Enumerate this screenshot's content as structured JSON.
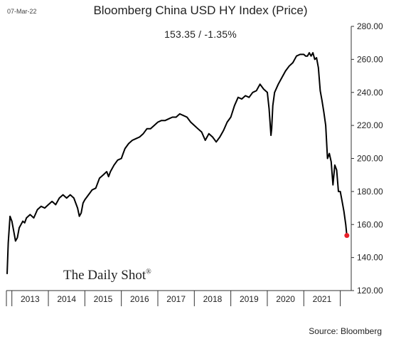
{
  "header": {
    "date": "07-Mar-22",
    "source": "Source: Bloomberg",
    "brand": "The Daily Shot",
    "brand_mark": "®"
  },
  "chart_data": {
    "type": "line",
    "title": "Bloomberg China USD HY Index (Price)",
    "subtitle": "153.35  /  -1.35%",
    "xlabel": "",
    "ylabel": "",
    "ylim": [
      120,
      280
    ],
    "yticks": [
      120,
      140,
      160,
      180,
      200,
      220,
      240,
      260,
      280
    ],
    "ytick_labels": [
      "120.00",
      "140.00",
      "160.00",
      "180.00",
      "200.00",
      "220.00",
      "240.00",
      "260.00",
      "280.00"
    ],
    "xlim": [
      2012.85,
      2022.3
    ],
    "x_period_labels": [
      "2013",
      "2014",
      "2015",
      "2016",
      "2017",
      "2018",
      "2019",
      "2020",
      "2021"
    ],
    "x_period_starts": [
      2013,
      2014,
      2015,
      2016,
      2017,
      2018,
      2019,
      2020,
      2021
    ],
    "grid": false,
    "line_color": "#000000",
    "last_point": {
      "x": 2022.18,
      "y": 153.35,
      "color": "#e8202a"
    },
    "series": [
      {
        "x": [
          2012.87,
          2012.9,
          2012.95,
          2013.0,
          2013.05,
          2013.1,
          2013.15,
          2013.2,
          2013.25,
          2013.3,
          2013.35,
          2013.4,
          2013.5,
          2013.6,
          2013.7,
          2013.8,
          2013.9,
          2014.0,
          2014.1,
          2014.2,
          2014.3,
          2014.4,
          2014.5,
          2014.6,
          2014.7,
          2014.8,
          2014.85,
          2014.9,
          2014.95,
          2015.0,
          2015.1,
          2015.2,
          2015.3,
          2015.4,
          2015.5,
          2015.6,
          2015.65,
          2015.7,
          2015.8,
          2015.9,
          2016.0,
          2016.05,
          2016.1,
          2016.2,
          2016.3,
          2016.4,
          2016.5,
          2016.6,
          2016.7,
          2016.8,
          2016.9,
          2017.0,
          2017.1,
          2017.2,
          2017.3,
          2017.4,
          2017.5,
          2017.6,
          2017.7,
          2017.8,
          2017.9,
          2018.0,
          2018.1,
          2018.2,
          2018.3,
          2018.4,
          2018.5,
          2018.6,
          2018.7,
          2018.8,
          2018.9,
          2019.0,
          2019.1,
          2019.2,
          2019.3,
          2019.4,
          2019.5,
          2019.6,
          2019.7,
          2019.8,
          2019.9,
          2020.0,
          2020.05,
          2020.1,
          2020.12,
          2020.15,
          2020.2,
          2020.3,
          2020.4,
          2020.5,
          2020.6,
          2020.7,
          2020.8,
          2020.9,
          2021.0,
          2021.05,
          2021.1,
          2021.15,
          2021.2,
          2021.25,
          2021.3,
          2021.35,
          2021.4,
          2021.45,
          2021.5,
          2021.55,
          2021.6,
          2021.65,
          2021.7,
          2021.75,
          2021.8,
          2021.85,
          2021.9,
          2021.95,
          2022.0,
          2022.05,
          2022.1,
          2022.15,
          2022.18
        ],
        "y": [
          130,
          149,
          165,
          162,
          156,
          150,
          152,
          158,
          160,
          162,
          161,
          164,
          166,
          164,
          169,
          171,
          170,
          172,
          174,
          172,
          176,
          178,
          176,
          178,
          176,
          170,
          165,
          167,
          173,
          175,
          178,
          181,
          182,
          188,
          190,
          192,
          189,
          192,
          196,
          199,
          200,
          203,
          206,
          209,
          211,
          212,
          213,
          215,
          218,
          218,
          220,
          222,
          223,
          223,
          224,
          225,
          225,
          227,
          226,
          225,
          222,
          220,
          218,
          216,
          211,
          215,
          213,
          210,
          213,
          217,
          222,
          225,
          232,
          237,
          236,
          238,
          237,
          240,
          241,
          245,
          242,
          240,
          230,
          214,
          218,
          232,
          240,
          245,
          249,
          253,
          256,
          258,
          262,
          263,
          263,
          262,
          262,
          264,
          262,
          264,
          260,
          261,
          255,
          241,
          235,
          228,
          220,
          200,
          203,
          198,
          184,
          196,
          193,
          180,
          180,
          174,
          168,
          160,
          153.35
        ]
      }
    ]
  }
}
